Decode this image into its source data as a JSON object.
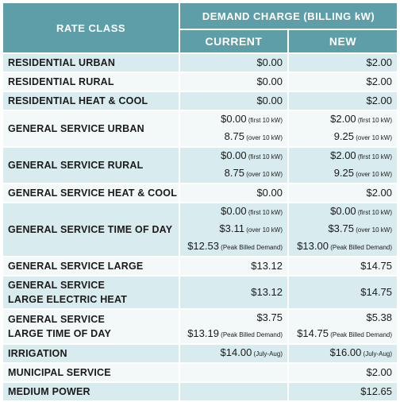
{
  "header": {
    "rate_class": "RATE CLASS",
    "demand_charge": "DEMAND CHARGE (BILLING kW)",
    "current": "CURRENT",
    "new": "NEW"
  },
  "rows": [
    {
      "name": [
        "RESIDENTIAL URBAN"
      ],
      "current": [
        {
          "v": "$0.00",
          "n": ""
        }
      ],
      "new": [
        {
          "v": "$2.00",
          "n": ""
        }
      ]
    },
    {
      "name": [
        "RESIDENTIAL RURAL"
      ],
      "current": [
        {
          "v": "$0.00",
          "n": ""
        }
      ],
      "new": [
        {
          "v": "$2.00",
          "n": ""
        }
      ]
    },
    {
      "name": [
        "RESIDENTIAL HEAT & COOL"
      ],
      "current": [
        {
          "v": "$0.00",
          "n": ""
        }
      ],
      "new": [
        {
          "v": "$2.00",
          "n": ""
        }
      ]
    },
    {
      "name": [
        "GENERAL SERVICE URBAN"
      ],
      "current": [
        {
          "v": "$0.00",
          "n": "(first 10 kW)"
        },
        {
          "v": "8.75",
          "n": "(over 10 kW)"
        }
      ],
      "new": [
        {
          "v": "$2.00",
          "n": "(first 10 kW)"
        },
        {
          "v": "9.25",
          "n": "(over 10 kW)"
        }
      ]
    },
    {
      "name": [
        "GENERAL SERVICE RURAL"
      ],
      "current": [
        {
          "v": "$0.00",
          "n": "(first 10 kW)"
        },
        {
          "v": "8.75",
          "n": "(over 10 kW)"
        }
      ],
      "new": [
        {
          "v": "$2.00",
          "n": "(first 10 kW)"
        },
        {
          "v": "9.25",
          "n": "(over 10 kW)"
        }
      ]
    },
    {
      "name": [
        "GENERAL SERVICE HEAT & COOL"
      ],
      "current": [
        {
          "v": "$0.00",
          "n": ""
        }
      ],
      "new": [
        {
          "v": "$2.00",
          "n": ""
        }
      ]
    },
    {
      "name": [
        "GENERAL SERVICE TIME OF DAY"
      ],
      "current": [
        {
          "v": "$0.00",
          "n": "(first 10 kW)"
        },
        {
          "v": "$3.11",
          "n": "(over 10 kW)"
        },
        {
          "v": "$12.53",
          "n": "(Peak Billed Demand)"
        }
      ],
      "new": [
        {
          "v": "$0.00",
          "n": "(first 10 kW)"
        },
        {
          "v": "$3.75",
          "n": "(over 10 kW)"
        },
        {
          "v": "$13.00",
          "n": "(Peak Billed Demand)"
        }
      ]
    },
    {
      "name": [
        "GENERAL SERVICE LARGE"
      ],
      "current": [
        {
          "v": "$13.12",
          "n": ""
        }
      ],
      "new": [
        {
          "v": "$14.75",
          "n": ""
        }
      ]
    },
    {
      "name": [
        "GENERAL SERVICE",
        "LARGE ELECTRIC HEAT"
      ],
      "current": [
        {
          "v": "$13.12",
          "n": ""
        }
      ],
      "new": [
        {
          "v": "$14.75",
          "n": ""
        }
      ]
    },
    {
      "name": [
        "GENERAL SERVICE",
        "LARGE TIME OF DAY"
      ],
      "current": [
        {
          "v": "$3.75",
          "n": ""
        },
        {
          "v": "$13.19",
          "n": "(Peak Billed Demand)"
        }
      ],
      "new": [
        {
          "v": "$5.38",
          "n": ""
        },
        {
          "v": "$14.75",
          "n": "(Peak Billed Demand)"
        }
      ]
    },
    {
      "name": [
        "IRRIGATION"
      ],
      "current": [
        {
          "v": "$14.00",
          "n": "(July-Aug)"
        }
      ],
      "new": [
        {
          "v": "$16.00",
          "n": "(July-Aug)"
        }
      ]
    },
    {
      "name": [
        "MUNICIPAL SERVICE"
      ],
      "current": [],
      "new": [
        {
          "v": "$2.00",
          "n": ""
        }
      ]
    },
    {
      "name": [
        "MEDIUM POWER"
      ],
      "current": [],
      "new": [
        {
          "v": "$12.65",
          "n": ""
        }
      ]
    }
  ],
  "colors": {
    "header_bg": "#5d9ea8",
    "row_shade": "#d8ebee",
    "row_light": "#f3f8f9"
  }
}
